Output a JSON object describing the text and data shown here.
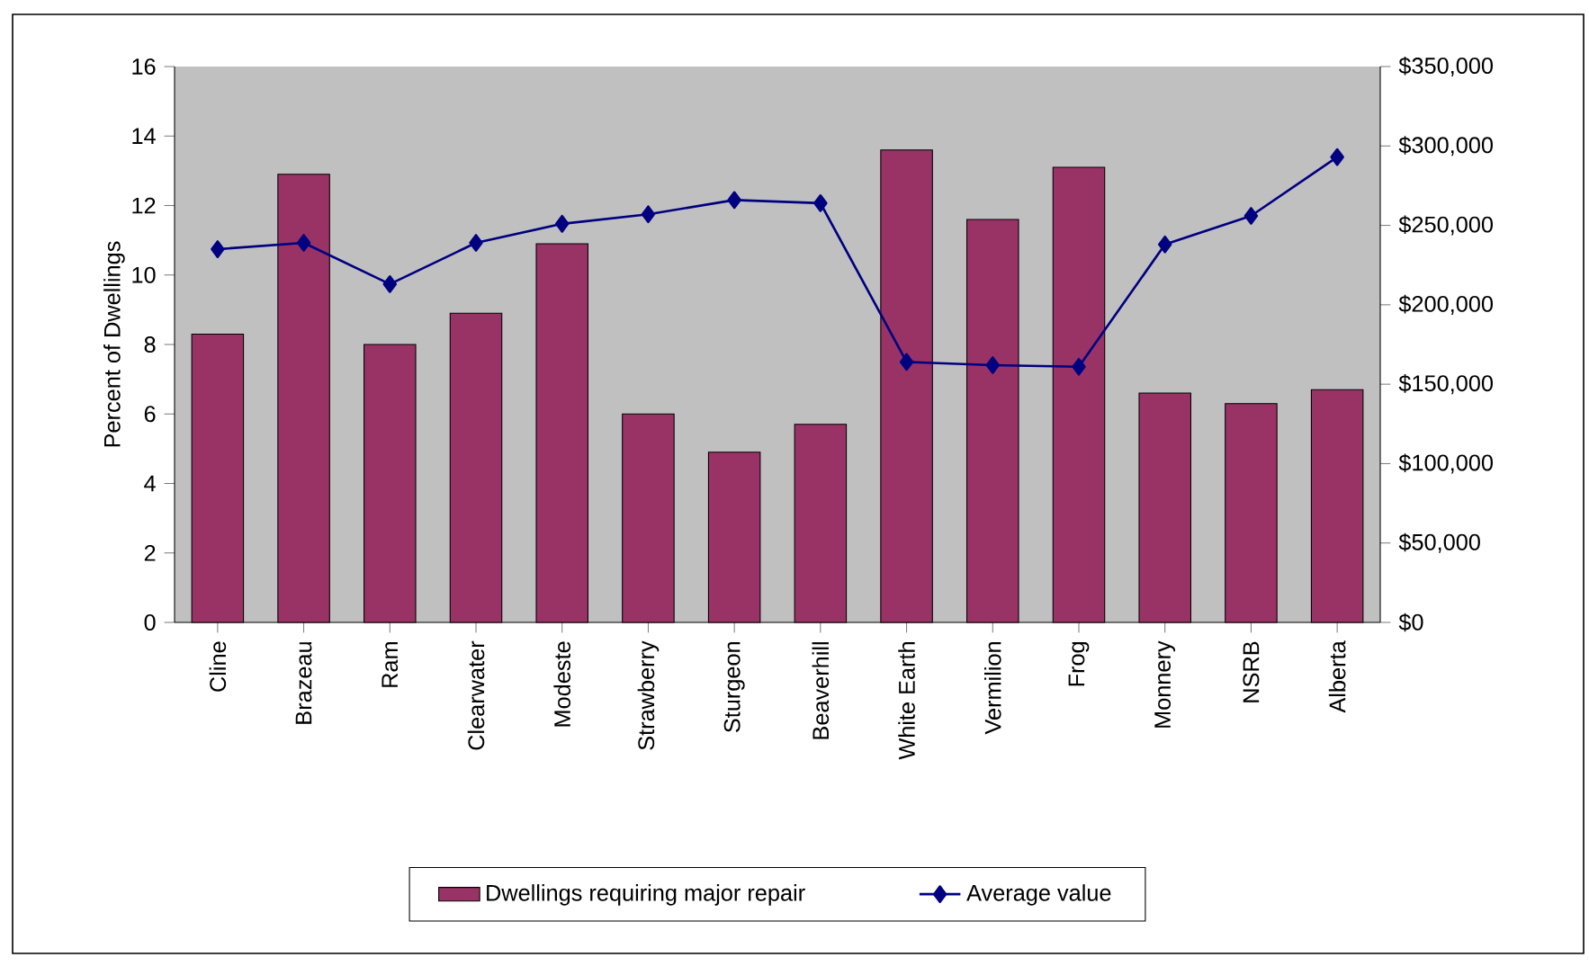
{
  "chart_data": {
    "type": "bar",
    "ylabel": "Percent of Dwellings",
    "categories": [
      "Cline",
      "Brazeau",
      "Ram",
      "Clearwater",
      "Modeste",
      "Strawberry",
      "Sturgeon",
      "Beaverhill",
      "White Earth",
      "Vermilion",
      "Frog",
      "Monnery",
      "NSRB",
      "Alberta"
    ],
    "series": [
      {
        "name": "Dwellings requiring major repair",
        "color": "#993366",
        "values": [
          8.3,
          12.9,
          8.0,
          8.9,
          10.9,
          6.0,
          4.9,
          5.7,
          13.6,
          11.6,
          13.1,
          6.6,
          6.3,
          6.7
        ]
      },
      {
        "name": "Average value",
        "type": "line",
        "axis": "y2",
        "color": "#000080",
        "values": [
          235000,
          239000,
          213000,
          239000,
          251000,
          257000,
          266000,
          264000,
          164000,
          162000,
          161000,
          238000,
          256000,
          293000
        ]
      }
    ],
    "ylim": [
      0,
      16
    ],
    "yticks": [
      0,
      2,
      4,
      6,
      8,
      10,
      12,
      14,
      16
    ],
    "y2lim": [
      0,
      350000
    ],
    "y2ticks": [
      {
        "value": 0,
        "label": "$0"
      },
      {
        "value": 50000,
        "label": "$50,000"
      },
      {
        "value": 100000,
        "label": "$100,000"
      },
      {
        "value": 150000,
        "label": "$150,000"
      },
      {
        "value": 200000,
        "label": "$200,000"
      },
      {
        "value": 250000,
        "label": "$250,000"
      },
      {
        "value": 300000,
        "label": "$300,000"
      },
      {
        "value": 350000,
        "label": "$350,000"
      }
    ],
    "marker": "diamond",
    "legend": "bottom"
  }
}
